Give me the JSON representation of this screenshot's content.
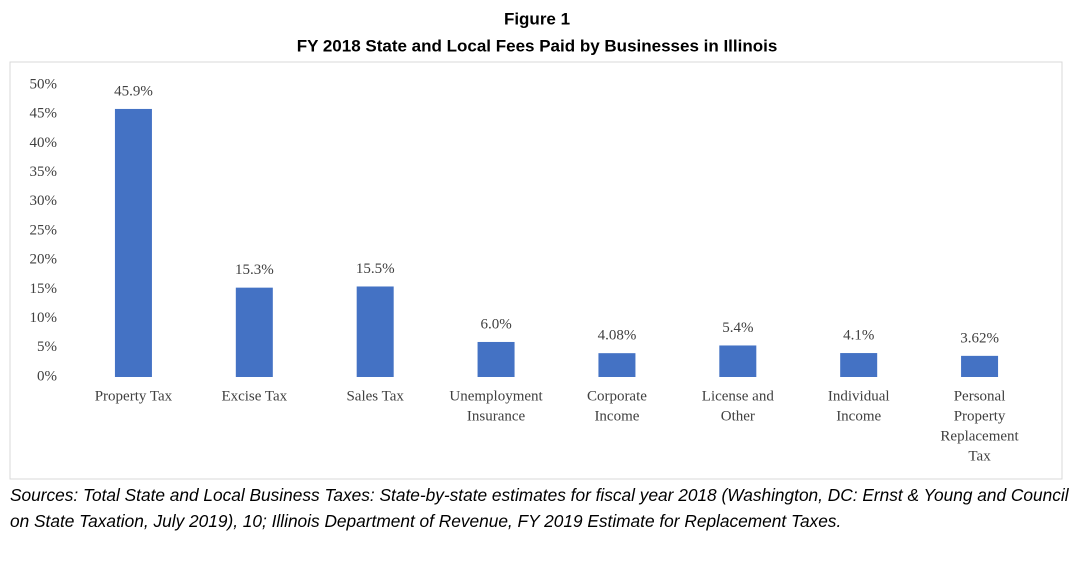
{
  "chart_data": {
    "type": "bar",
    "title": "Figure 1",
    "subtitle": "FY 2018 State and Local Fees Paid by Businesses in Illinois",
    "categories": [
      [
        "Property Tax"
      ],
      [
        "Excise Tax"
      ],
      [
        "Sales Tax"
      ],
      [
        "Unemployment",
        "Insurance"
      ],
      [
        "Corporate",
        "Income"
      ],
      [
        "License and",
        "Other"
      ],
      [
        "Individual",
        "Income"
      ],
      [
        "Personal",
        "Property",
        "Replacement",
        "Tax"
      ]
    ],
    "values": [
      45.9,
      15.3,
      15.5,
      6.0,
      4.08,
      5.4,
      4.1,
      3.62
    ],
    "value_labels": [
      "45.9%",
      "15.3%",
      "15.5%",
      "6.0%",
      "4.08%",
      "5.4%",
      "4.1%",
      "3.62%"
    ],
    "color": "#4472c4",
    "ylim": [
      0,
      50
    ],
    "yticks": [
      {
        "value": 0,
        "label": "0%"
      },
      {
        "value": 5,
        "label": "5%"
      },
      {
        "value": 10,
        "label": "10%"
      },
      {
        "value": 15,
        "label": "15%"
      },
      {
        "value": 20,
        "label": "20%"
      },
      {
        "value": 25,
        "label": "25%"
      },
      {
        "value": 30,
        "label": "30%"
      },
      {
        "value": 35,
        "label": "35%"
      },
      {
        "value": 40,
        "label": "40%"
      },
      {
        "value": 45,
        "label": "45%"
      },
      {
        "value": 50,
        "label": "50%"
      }
    ],
    "grid": true,
    "note": "Sources: Total State and Local Business Taxes: State-by-state estimates for fiscal year 2018 (Washington, DC: Ernst & Young and Council on State Taxation, July 2019), 10; Illinois Department of Revenue, FY 2019 Estimate for Replacement Taxes."
  }
}
